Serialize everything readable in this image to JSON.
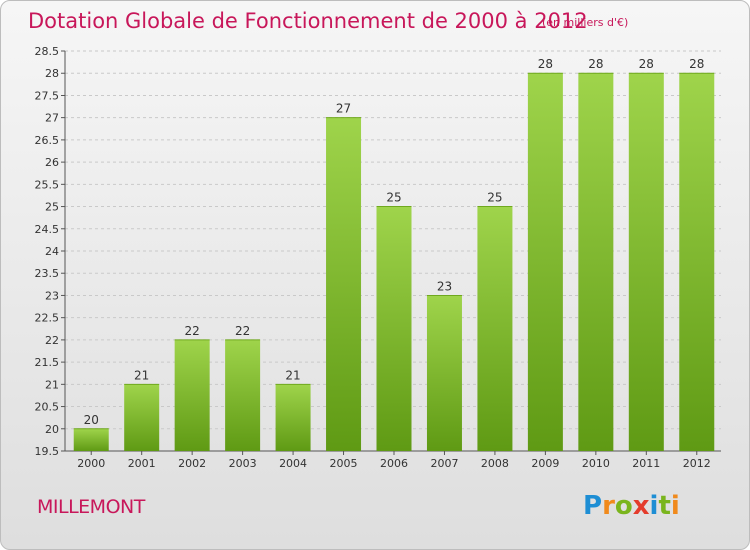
{
  "title": "Dotation Globale de Fonctionnement de 2000 à 2012",
  "subtitle": "(en milliers d'€)",
  "place": "MILLEMONT",
  "logo": {
    "text": "Proxiti",
    "colors": [
      "#1e8ed4",
      "#f08a1c",
      "#7ab51d",
      "#e43c2c"
    ]
  },
  "colors": {
    "title": "#c8175a",
    "bar_top": "#9fd44b",
    "bar_bottom": "#5f9a14"
  },
  "chart_data": {
    "type": "bar",
    "categories": [
      "2000",
      "2001",
      "2002",
      "2003",
      "2004",
      "2005",
      "2006",
      "2007",
      "2008",
      "2009",
      "2010",
      "2011",
      "2012"
    ],
    "values": [
      20,
      21,
      22,
      22,
      21,
      27,
      25,
      23,
      25,
      28,
      28,
      28,
      28
    ],
    "data_labels": [
      "20",
      "21",
      "22",
      "22",
      "21",
      "27",
      "25",
      "23",
      "25",
      "28",
      "28",
      "28",
      "28"
    ],
    "title": "Dotation Globale de Fonctionnement de 2000 à 2012",
    "ylim": [
      19.5,
      28.5
    ],
    "yticks": [
      19.5,
      20,
      20.5,
      21,
      21.5,
      22,
      22.5,
      23,
      23.5,
      24,
      24.5,
      25,
      25.5,
      26,
      26.5,
      27,
      27.5,
      28,
      28.5
    ],
    "grid": true
  }
}
